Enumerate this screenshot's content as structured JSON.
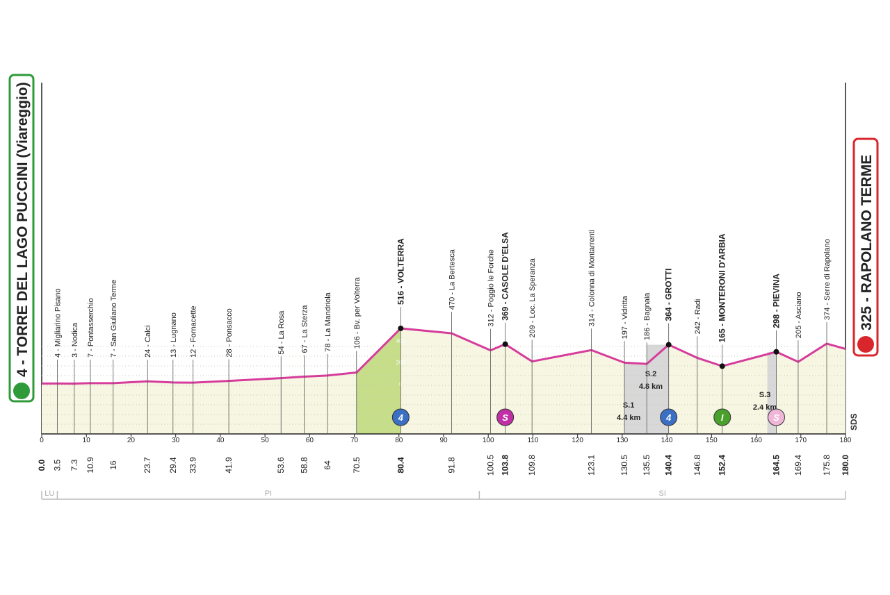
{
  "chart_data": {
    "type": "line",
    "start_label": "4 - TORRE DEL LAGO PUCCINI (Viareggio)",
    "finish_label": "325 - RAPOLANO TERME",
    "labels": [
      "4 - TORRE DEL LAGO PUCCINI (Viareggio)",
      "4 - Migliarino Pisano",
      "3 - Nodica",
      "7 - Pontasserchio",
      "7 - San Giuliano Terme",
      "24 - Calci",
      "13 - Lugnano",
      "12 - Fornacette",
      "28 - Ponsacco",
      "54 - La Rosa",
      "67 - La Sterza",
      "78 - La Mandriola",
      "106 - Bv. per Volterra",
      "516 - VOLTERRA",
      "470 - La Bertesca",
      "312 - Poggio le Forche",
      "369 - CASOLE D'ELSA",
      "209 - Loc. La Speranza",
      "314 - Colonna di Montarrenti",
      "197 - Vidritta",
      "186 - Bagnaia",
      "364 - GROTTI",
      "242 - Radi",
      "165 - MONTERONI D'ARBIA",
      "298 - PIEVINA",
      "205 - Asciano",
      "374 - Serre di Rapolano",
      "325 - RAPOLANO TERME"
    ],
    "x": [
      {
        "value": 0,
        "label": "0.0"
      },
      3.5,
      7.3,
      10.9,
      16.0,
      23.7,
      29.4,
      33.9,
      41.9,
      53.6,
      58.8,
      64.0,
      70.5,
      80.4,
      91.8,
      100.5,
      103.8,
      109.8,
      123.1,
      130.5,
      135.5,
      140.4,
      146.8,
      152.4,
      164.5,
      169.4,
      175.8,
      {
        "value": 180,
        "label": "180.0"
      }
    ],
    "values": [
      4,
      4,
      3,
      7,
      7,
      24,
      13,
      12,
      28,
      54,
      67,
      78,
      106,
      516,
      470,
      312,
      369,
      209,
      314,
      197,
      186,
      364,
      242,
      165,
      298,
      205,
      374,
      325
    ],
    "highlight": [
      false,
      false,
      false,
      false,
      false,
      false,
      false,
      false,
      false,
      false,
      false,
      false,
      false,
      true,
      false,
      false,
      true,
      false,
      false,
      false,
      false,
      true,
      false,
      true,
      true,
      false,
      false,
      false
    ],
    "color": "#d63c9b",
    "fill": "#f6f6e2",
    "xlim": [
      0,
      180
    ],
    "xticks": [
      0,
      10,
      20,
      30,
      40,
      50,
      60,
      70,
      80,
      90,
      100,
      110,
      120,
      130,
      140,
      150,
      160,
      170,
      180
    ],
    "ylim": [
      -465,
      2800
    ],
    "yticks": [
      0,
      200,
      400
    ],
    "climb": {
      "from": 70.5,
      "to": 80.4,
      "color": "#c6dd8a"
    },
    "icons": [
      {
        "label": "4",
        "km": 80.4,
        "color": "#3a6fc4"
      },
      {
        "label": "S",
        "km": 103.8,
        "color": "#c02fa6"
      },
      {
        "label": "4",
        "km": 140.4,
        "color": "#3a6fc4"
      },
      {
        "label": "I",
        "km": 152.4,
        "color": "#4aa02c"
      },
      {
        "label": "S",
        "km": 164.5,
        "color": "#f0b6d8"
      }
    ],
    "sectors": [
      {
        "name": "S.1",
        "length": 4.4,
        "length_label": "4.4 km",
        "from": 130.5,
        "to": 135.5
      },
      {
        "name": "S.2",
        "length": 4.8,
        "length_label": "4.8 km",
        "from": 135.5,
        "to": 140.4
      },
      {
        "name": "S.3",
        "length": 2.4,
        "length_label": "2.4 km",
        "from": 162.5,
        "to": 164.5
      }
    ],
    "provinces": [
      {
        "name": "LU",
        "from": 0,
        "to": 3.5
      },
      {
        "name": "PI",
        "from": 3.5,
        "to": 98
      },
      {
        "name": "SI",
        "from": 98,
        "to": 180
      }
    ],
    "logo": "SDS"
  }
}
